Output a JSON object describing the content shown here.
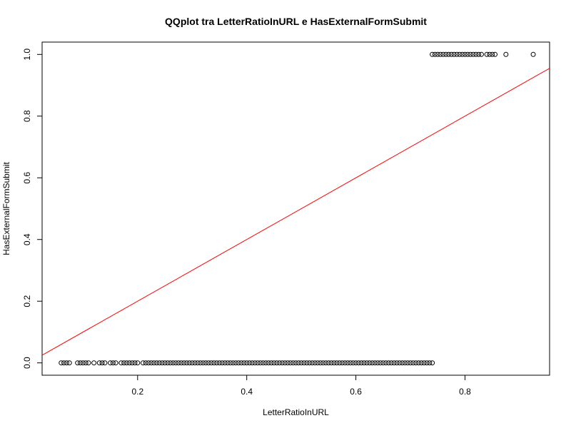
{
  "chart_data": {
    "type": "scatter",
    "title": "QQplot tra LetterRatioInURL e HasExternalFormSubmit",
    "xlabel": "LetterRatioInURL",
    "ylabel": "HasExternalFormSubmit",
    "xlim": [
      0.025,
      0.955
    ],
    "ylim": [
      -0.04,
      1.04
    ],
    "x_ticks": [
      0.2,
      0.4,
      0.6,
      0.8
    ],
    "y_ticks": [
      0.0,
      0.2,
      0.4,
      0.6,
      0.8,
      1.0
    ],
    "x_tick_labels": [
      "0.2",
      "0.4",
      "0.6",
      "0.8"
    ],
    "y_tick_labels": [
      "0.0",
      "0.2",
      "0.4",
      "0.6",
      "0.8",
      "1.0"
    ],
    "point_style": "open-circle",
    "grid": false,
    "series": [
      {
        "x": [
          0.06,
          0.065,
          0.07,
          0.075,
          0.09,
          0.095,
          0.1,
          0.105,
          0.11,
          0.12,
          0.13,
          0.135,
          0.14,
          0.15,
          0.155,
          0.16,
          0.17,
          0.175,
          0.18,
          0.185,
          0.19,
          0.195,
          0.2,
          0.21,
          0.215,
          0.22,
          0.225,
          0.23,
          0.235,
          0.24,
          0.245,
          0.25,
          0.255,
          0.26,
          0.265,
          0.27,
          0.275,
          0.28,
          0.285,
          0.29,
          0.295,
          0.3,
          0.305,
          0.31,
          0.315,
          0.32,
          0.325,
          0.33,
          0.335,
          0.34,
          0.345,
          0.35,
          0.355,
          0.36,
          0.365,
          0.37,
          0.375,
          0.38,
          0.385,
          0.39,
          0.395,
          0.4,
          0.405,
          0.41,
          0.415,
          0.42,
          0.425,
          0.43,
          0.435,
          0.44,
          0.445,
          0.45,
          0.455,
          0.46,
          0.465,
          0.47,
          0.475,
          0.48,
          0.485,
          0.49,
          0.495,
          0.5,
          0.505,
          0.51,
          0.515,
          0.52,
          0.525,
          0.53,
          0.535,
          0.54,
          0.545,
          0.55,
          0.555,
          0.56,
          0.565,
          0.57,
          0.575,
          0.58,
          0.585,
          0.59,
          0.595,
          0.6,
          0.605,
          0.61,
          0.615,
          0.62,
          0.625,
          0.63,
          0.635,
          0.64,
          0.645,
          0.65,
          0.655,
          0.66,
          0.665,
          0.67,
          0.675,
          0.68,
          0.685,
          0.69,
          0.695,
          0.7,
          0.705,
          0.71,
          0.715,
          0.72,
          0.725,
          0.73,
          0.735,
          0.74,
          0.74,
          0.745,
          0.75,
          0.755,
          0.76,
          0.765,
          0.77,
          0.775,
          0.78,
          0.785,
          0.79,
          0.795,
          0.8,
          0.805,
          0.81,
          0.815,
          0.82,
          0.825,
          0.83,
          0.84,
          0.845,
          0.85,
          0.855,
          0.875,
          0.925
        ],
        "y": [
          0.0,
          0.0,
          0.0,
          0.0,
          0.0,
          0.0,
          0.0,
          0.0,
          0.0,
          0.0,
          0.0,
          0.0,
          0.0,
          0.0,
          0.0,
          0.0,
          0.0,
          0.0,
          0.0,
          0.0,
          0.0,
          0.0,
          0.0,
          0.0,
          0.0,
          0.0,
          0.0,
          0.0,
          0.0,
          0.0,
          0.0,
          0.0,
          0.0,
          0.0,
          0.0,
          0.0,
          0.0,
          0.0,
          0.0,
          0.0,
          0.0,
          0.0,
          0.0,
          0.0,
          0.0,
          0.0,
          0.0,
          0.0,
          0.0,
          0.0,
          0.0,
          0.0,
          0.0,
          0.0,
          0.0,
          0.0,
          0.0,
          0.0,
          0.0,
          0.0,
          0.0,
          0.0,
          0.0,
          0.0,
          0.0,
          0.0,
          0.0,
          0.0,
          0.0,
          0.0,
          0.0,
          0.0,
          0.0,
          0.0,
          0.0,
          0.0,
          0.0,
          0.0,
          0.0,
          0.0,
          0.0,
          0.0,
          0.0,
          0.0,
          0.0,
          0.0,
          0.0,
          0.0,
          0.0,
          0.0,
          0.0,
          0.0,
          0.0,
          0.0,
          0.0,
          0.0,
          0.0,
          0.0,
          0.0,
          0.0,
          0.0,
          0.0,
          0.0,
          0.0,
          0.0,
          0.0,
          0.0,
          0.0,
          0.0,
          0.0,
          0.0,
          0.0,
          0.0,
          0.0,
          0.0,
          0.0,
          0.0,
          0.0,
          0.0,
          0.0,
          0.0,
          0.0,
          0.0,
          0.0,
          0.0,
          0.0,
          0.0,
          0.0,
          0.0,
          0.0,
          1.0,
          1.0,
          1.0,
          1.0,
          1.0,
          1.0,
          1.0,
          1.0,
          1.0,
          1.0,
          1.0,
          1.0,
          1.0,
          1.0,
          1.0,
          1.0,
          1.0,
          1.0,
          1.0,
          1.0,
          1.0,
          1.0,
          1.0,
          1.0,
          1.0
        ]
      }
    ],
    "reference_line": {
      "slope": 1,
      "intercept": 0,
      "color": "#ff0000"
    }
  }
}
